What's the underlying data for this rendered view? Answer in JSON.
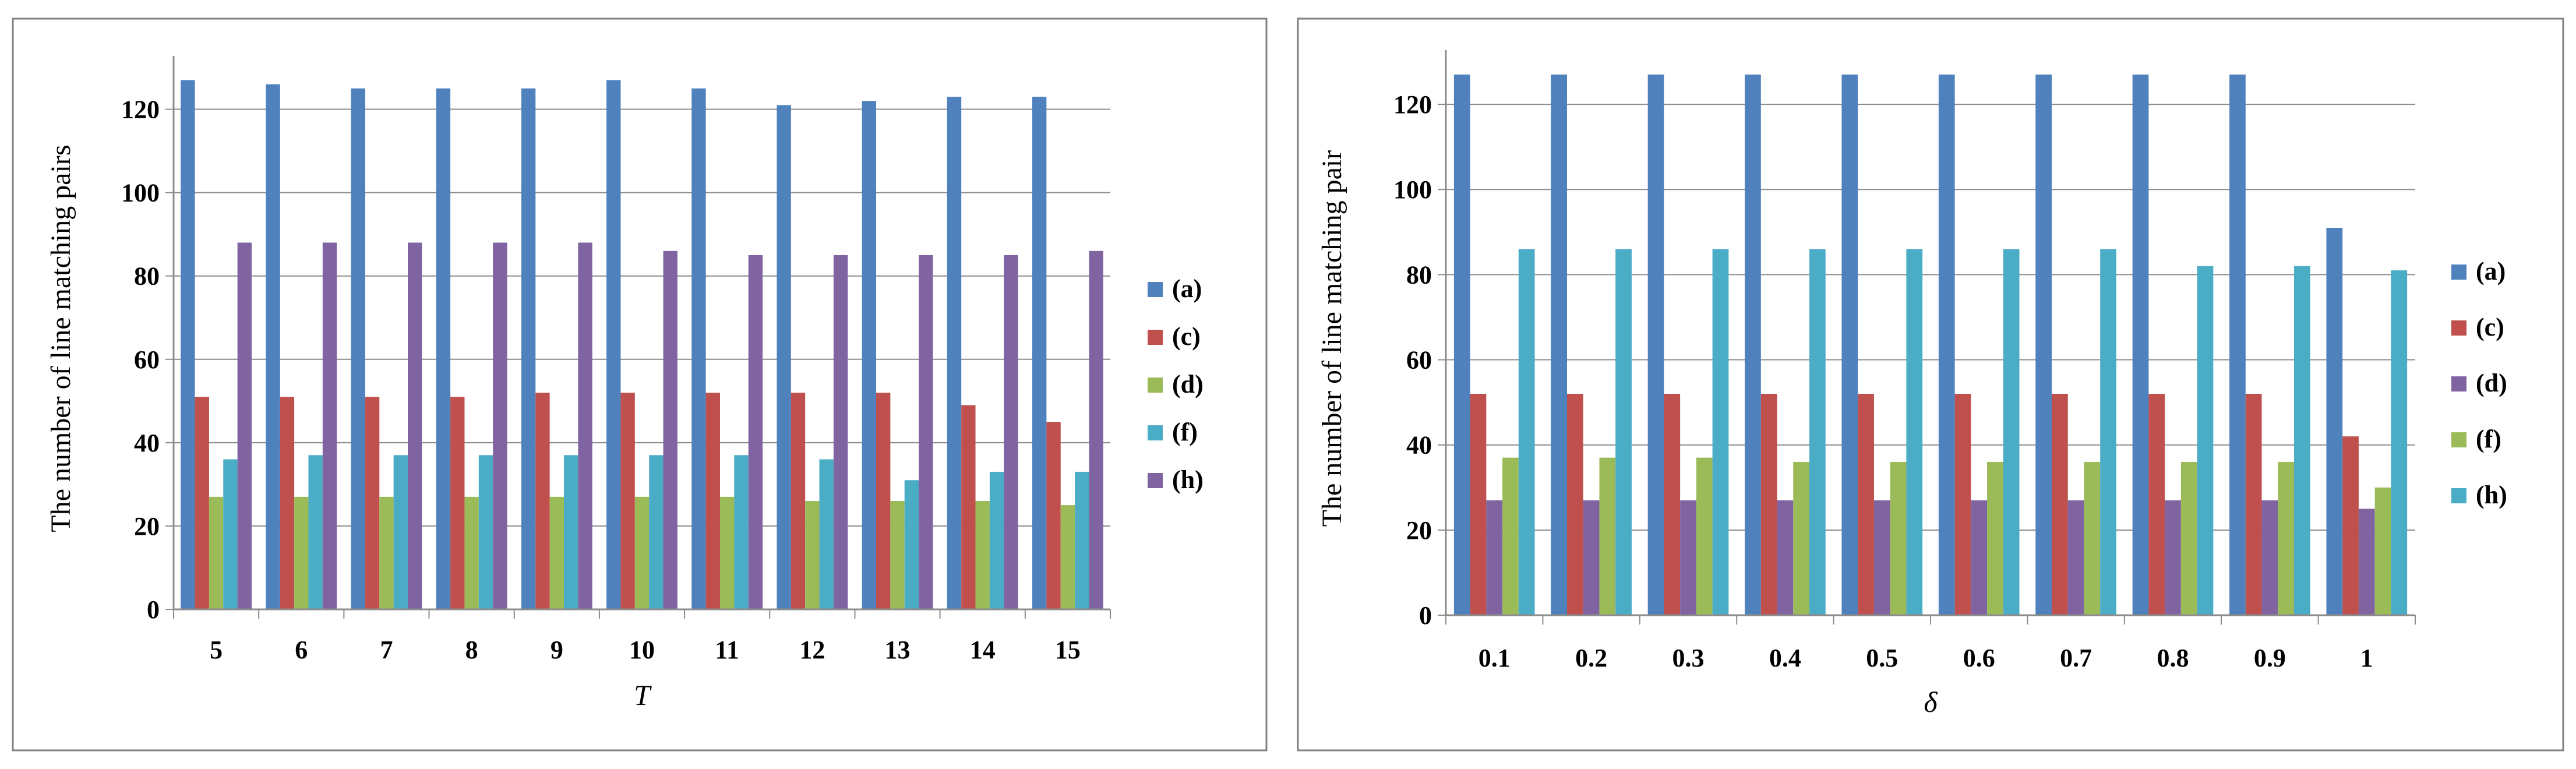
{
  "chart_data": [
    {
      "type": "bar",
      "title": "",
      "xlabel": "T",
      "ylabel": "The number of line matching pairs",
      "ylim": [
        0,
        130
      ],
      "yticks": [
        0,
        20,
        40,
        60,
        80,
        100,
        120
      ],
      "grid": true,
      "legend_position": "right",
      "categories": [
        "5",
        "6",
        "7",
        "8",
        "9",
        "10",
        "11",
        "12",
        "13",
        "14",
        "15"
      ],
      "series": [
        {
          "name": "(a)",
          "color": "#4F81BD",
          "values": [
            127,
            126,
            125,
            125,
            125,
            127,
            125,
            121,
            122,
            123,
            123
          ]
        },
        {
          "name": "(c)",
          "color": "#C0504D",
          "values": [
            51,
            51,
            51,
            51,
            52,
            52,
            52,
            52,
            52,
            49,
            45
          ]
        },
        {
          "name": "(d)",
          "color": "#9BBB59",
          "values": [
            27,
            27,
            27,
            27,
            27,
            27,
            27,
            26,
            26,
            26,
            25
          ]
        },
        {
          "name": "(f)",
          "color": "#4BACC6",
          "values": [
            36,
            37,
            37,
            37,
            37,
            37,
            37,
            36,
            31,
            33,
            33
          ]
        },
        {
          "name": "(h)",
          "color": "#8064A2",
          "values": [
            88,
            88,
            88,
            88,
            88,
            86,
            85,
            85,
            85,
            85,
            86
          ]
        }
      ]
    },
    {
      "type": "bar",
      "title": "",
      "xlabel": "δ",
      "ylabel": "The number of line matching pair",
      "ylim": [
        0,
        130
      ],
      "yticks": [
        0,
        20,
        40,
        60,
        80,
        100,
        120
      ],
      "grid": true,
      "legend_position": "right",
      "categories": [
        "0.1",
        "0.2",
        "0.3",
        "0.4",
        "0.5",
        "0.6",
        "0.7",
        "0.8",
        "0.9",
        "1"
      ],
      "series": [
        {
          "name": "(a)",
          "color": "#4F81BD",
          "values": [
            127,
            127,
            127,
            127,
            127,
            127,
            127,
            127,
            127,
            91
          ]
        },
        {
          "name": "(c)",
          "color": "#C0504D",
          "values": [
            52,
            52,
            52,
            52,
            52,
            52,
            52,
            52,
            52,
            42
          ]
        },
        {
          "name": "(d)",
          "color": "#8064A2",
          "values": [
            27,
            27,
            27,
            27,
            27,
            27,
            27,
            27,
            27,
            25
          ]
        },
        {
          "name": "(f)",
          "color": "#9BBB59",
          "values": [
            37,
            37,
            37,
            36,
            36,
            36,
            36,
            36,
            36,
            30
          ]
        },
        {
          "name": "(h)",
          "color": "#4BACC6",
          "values": [
            86,
            86,
            86,
            86,
            86,
            86,
            86,
            82,
            82,
            81
          ]
        }
      ]
    }
  ]
}
